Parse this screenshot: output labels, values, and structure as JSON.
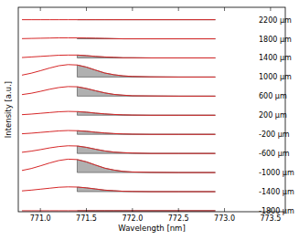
{
  "chart_data": {
    "type": "line",
    "x_label": "Wavelength [nm]",
    "y_label": "Intensity [a.u.]",
    "x": [
      770.8,
      770.9,
      771.0,
      771.1,
      771.2,
      771.3,
      771.4,
      771.5,
      771.6,
      771.7,
      771.8,
      771.9,
      772.0,
      772.2,
      772.5,
      772.9
    ],
    "shade_from": 771.4,
    "color": "#d62728",
    "xlim": [
      770.76,
      773.66
    ],
    "xticks": [
      {
        "value": 771,
        "label": "771.0"
      },
      771.5,
      {
        "value": 772,
        "label": "772.0"
      },
      772.5,
      {
        "value": 773,
        "label": "773.0"
      },
      773.5
    ],
    "ylim": [
      -0.05,
      10.65
    ],
    "tick_labels": "x",
    "grid": false,
    "series": [
      {
        "name": "2200 μm",
        "values": [
          10,
          10,
          10,
          10,
          10,
          10,
          10,
          10,
          10,
          10,
          10,
          10,
          10,
          10,
          10,
          10
        ]
      },
      {
        "name": "1800 μm",
        "values": [
          9.01,
          9.02,
          9.03,
          9.04,
          9.05,
          9.05,
          9.05,
          9.04,
          9.03,
          9.02,
          9.01,
          9,
          9,
          9,
          9,
          9
        ]
      },
      {
        "name": "1400 μm",
        "values": [
          8.02,
          8.05,
          8.08,
          8.11,
          8.14,
          8.15,
          8.15,
          8.12,
          8.08,
          8.05,
          8.03,
          8.01,
          8.01,
          8,
          8,
          8
        ]
      },
      {
        "name": "1000 μm",
        "values": [
          7.1,
          7.2,
          7.33,
          7.47,
          7.59,
          7.65,
          7.63,
          7.52,
          7.36,
          7.21,
          7.12,
          7.06,
          7.03,
          7.01,
          7,
          7
        ]
      },
      {
        "name": "600 μm",
        "values": [
          6.08,
          6.15,
          6.25,
          6.36,
          6.45,
          6.5,
          6.49,
          6.4,
          6.28,
          6.17,
          6.09,
          6.05,
          6.02,
          6.01,
          6,
          6
        ]
      },
      {
        "name": "200 μm",
        "values": [
          5.03,
          5.06,
          5.1,
          5.14,
          5.18,
          5.2,
          5.19,
          5.16,
          5.11,
          5.07,
          5.04,
          5.02,
          5.01,
          5,
          5,
          5
        ]
      },
      {
        "name": "-200 μm",
        "values": [
          4.03,
          4.06,
          4.1,
          4.14,
          4.18,
          4.2,
          4.19,
          4.16,
          4.11,
          4.07,
          4.04,
          4.02,
          4.01,
          4,
          4,
          4
        ]
      },
      {
        "name": "-600 μm",
        "values": [
          3.06,
          3.12,
          3.2,
          3.29,
          3.36,
          3.4,
          3.39,
          3.32,
          3.22,
          3.13,
          3.07,
          3.04,
          3.02,
          3,
          3,
          3
        ]
      },
      {
        "name": "-1000 μm",
        "values": [
          2.11,
          2.21,
          2.35,
          2.5,
          2.63,
          2.7,
          2.68,
          2.56,
          2.39,
          2.23,
          2.13,
          2.06,
          2.03,
          2.01,
          2,
          2
        ]
      },
      {
        "name": "-1400 μm",
        "values": [
          1.04,
          1.08,
          1.13,
          1.18,
          1.23,
          1.25,
          1.24,
          1.2,
          1.14,
          1.08,
          1.05,
          1.02,
          1.01,
          1,
          1,
          1
        ]
      },
      {
        "name": "-1800 μm",
        "values": [
          0,
          0,
          0,
          0,
          0,
          0,
          0,
          0,
          0,
          0,
          0,
          0,
          0,
          0,
          0,
          0
        ]
      }
    ]
  }
}
